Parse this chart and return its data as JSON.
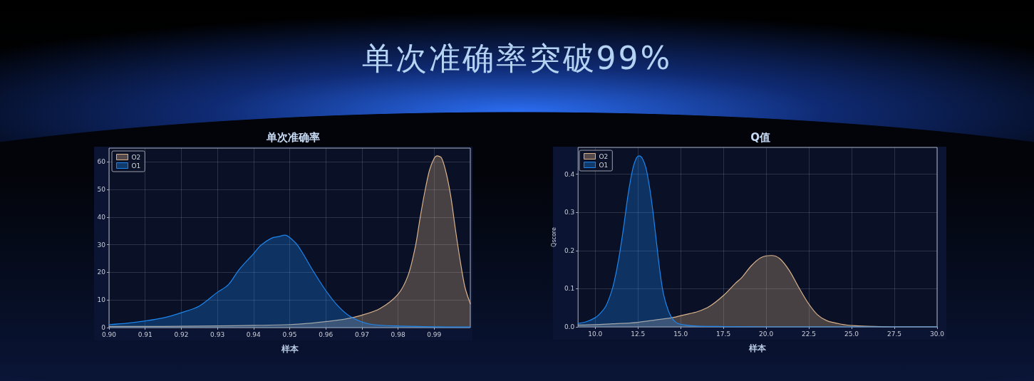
{
  "chart_data": [
    {
      "type": "other",
      "title": "单次准确率突破99%"
    },
    {
      "type": "area",
      "title": "单次准确率",
      "xlabel": "样本",
      "xlim": [
        0.9,
        1.0
      ],
      "xticks": [
        {
          "value": 0.9,
          "label": "0.90"
        },
        0.91,
        0.92,
        0.93,
        0.94,
        0.95,
        0.96,
        0.97,
        0.98,
        0.99
      ],
      "ylim": [
        0,
        65
      ],
      "yticks": [
        0,
        10,
        20,
        30,
        40,
        50,
        60
      ],
      "grid": true,
      "legend": "top left",
      "series": [
        {
          "name": "O2",
          "color": "#d9b38c",
          "x": [
            0.9,
            0.91,
            0.92,
            0.93,
            0.94,
            0.95,
            0.955,
            0.96,
            0.965,
            0.97,
            0.975,
            0.98,
            0.9828,
            0.9848,
            0.9861,
            0.9874,
            0.9887,
            0.99,
            0.9908,
            0.992,
            0.9933,
            0.9946,
            0.9959,
            0.9972,
            0.9985,
            1.0
          ],
          "values": [
            0.4,
            0.4,
            0.5,
            0.6,
            0.8,
            1.1,
            1.5,
            2.2,
            3.0,
            4.5,
            6.9,
            12.1,
            19.0,
            29.4,
            39.7,
            49.2,
            57.0,
            61.3,
            62.2,
            61.5,
            56.1,
            47.5,
            35.4,
            24.2,
            14.7,
            8.6
          ]
        },
        {
          "name": "O1",
          "color": "#1c86ee",
          "x": [
            0.9,
            0.905,
            0.91,
            0.915,
            0.92,
            0.925,
            0.93,
            0.933,
            0.936,
            0.94,
            0.942,
            0.945,
            0.947,
            0.9487,
            0.9516,
            0.9533,
            0.9566,
            0.9598,
            0.9631,
            0.9664,
            0.9697,
            0.973,
            0.9795,
            0.99,
            1.0
          ],
          "values": [
            1.1,
            1.6,
            2.4,
            3.5,
            5.4,
            7.8,
            12.8,
            15.5,
            21.0,
            26.8,
            29.8,
            32.4,
            33.0,
            33.5,
            30.7,
            27.6,
            20.3,
            13.8,
            8.2,
            4.3,
            2.2,
            1.1,
            0.6,
            0.3,
            0.2
          ]
        }
      ]
    },
    {
      "type": "area",
      "title": "Q值",
      "xlabel": "样本",
      "ylabel": "Qscore",
      "xlim": [
        9,
        30
      ],
      "xticks": [
        {
          "value": 10,
          "label": "10.0"
        },
        12.5,
        {
          "value": 15,
          "label": "15.0"
        },
        17.5,
        {
          "value": 20,
          "label": "20.0"
        },
        22.5,
        {
          "value": 25,
          "label": "25.0"
        },
        27.5,
        {
          "value": 30,
          "label": "30.0"
        }
      ],
      "ylim": [
        0,
        0.47
      ],
      "yticks": [
        {
          "value": 0,
          "label": "0.0"
        },
        0.1,
        0.2,
        0.3,
        0.4
      ],
      "grid": true,
      "legend": "top left",
      "series": [
        {
          "name": "O2",
          "color": "#d9b38c",
          "x": [
            9,
            10,
            11,
            12,
            12.5,
            13.5,
            14.5,
            15.26,
            16,
            16.7,
            17.5,
            18.2,
            18.57,
            19.13,
            19.68,
            20.3,
            20.79,
            21.35,
            21.9,
            22.45,
            23,
            23.56,
            24.4,
            25.2,
            26.3,
            27.45,
            30
          ],
          "values": [
            0.005,
            0.006,
            0.008,
            0.01,
            0.012,
            0.018,
            0.024,
            0.032,
            0.04,
            0.054,
            0.082,
            0.114,
            0.129,
            0.16,
            0.181,
            0.187,
            0.179,
            0.148,
            0.104,
            0.063,
            0.032,
            0.016,
            0.007,
            0.003,
            0.001,
            0,
            0
          ]
        },
        {
          "name": "O1",
          "color": "#1c86ee",
          "x": [
            9,
            9.45,
            10,
            10.35,
            10.62,
            10.9,
            11.1,
            11.38,
            11.66,
            11.93,
            12.21,
            12.42,
            12.58,
            12.76,
            12.97,
            13.18,
            13.39,
            13.6,
            13.8,
            14,
            14.29,
            14.56,
            14.84,
            15.26,
            15.95,
            17.05,
            20,
            30
          ],
          "values": [
            0.009,
            0.013,
            0.024,
            0.038,
            0.054,
            0.085,
            0.116,
            0.179,
            0.26,
            0.348,
            0.416,
            0.443,
            0.448,
            0.441,
            0.416,
            0.366,
            0.298,
            0.216,
            0.141,
            0.085,
            0.041,
            0.019,
            0.009,
            0.005,
            0.002,
            0.001,
            0,
            0
          ]
        }
      ]
    }
  ]
}
